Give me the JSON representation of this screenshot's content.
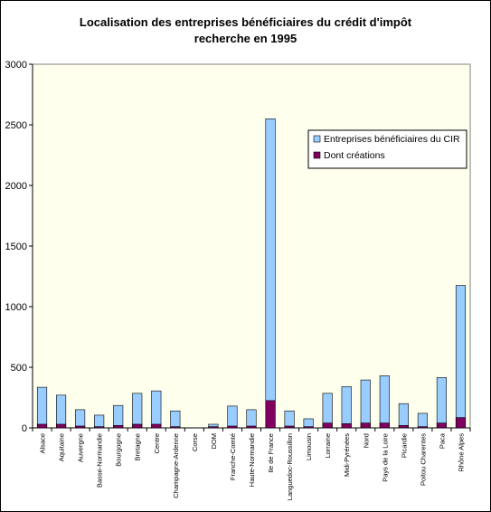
{
  "chart_data": {
    "type": "bar",
    "title_lines": [
      "Localisation des entreprises bénéficiaires du crédit d'impôt",
      "recherche en 1995"
    ],
    "xlabel": "",
    "ylabel": "",
    "ylim": [
      0,
      3000
    ],
    "yticks": [
      "0",
      "500",
      "1000",
      "1500",
      "2000",
      "2500",
      "3000"
    ],
    "grid": false,
    "legend_position": "top-right",
    "plot_background": "#ffffee",
    "categories": [
      "Alsace",
      "Aquitaine",
      "Auvergne",
      "Basse-Normandie",
      "Bourgogne",
      "Bretagne",
      "Centre",
      "Champagne-Ardenne",
      "Corse",
      "DOM",
      "Franche-Comté",
      "Haute-Normandie",
      "Ile de France",
      "Languedoc-Roussillon",
      "Limousin",
      "Lorraine",
      "Midi-Pyrénées",
      "Nord",
      "Pays de la Loire",
      "Picardie",
      "Poitou Charentes",
      "Paca",
      "Rhône Alpes"
    ],
    "series": [
      {
        "name": "Entreprises bénéficiaires du CIR",
        "color": "#99ccff",
        "values": [
          335,
          270,
          150,
          105,
          185,
          285,
          305,
          140,
          0,
          30,
          180,
          150,
          2550,
          140,
          75,
          285,
          340,
          395,
          430,
          200,
          120,
          415,
          1175
        ]
      },
      {
        "name": "Dont créations",
        "color": "#800060",
        "values": [
          30,
          30,
          15,
          10,
          20,
          30,
          30,
          10,
          0,
          10,
          15,
          15,
          225,
          15,
          10,
          40,
          35,
          40,
          40,
          20,
          10,
          40,
          85
        ]
      }
    ]
  }
}
